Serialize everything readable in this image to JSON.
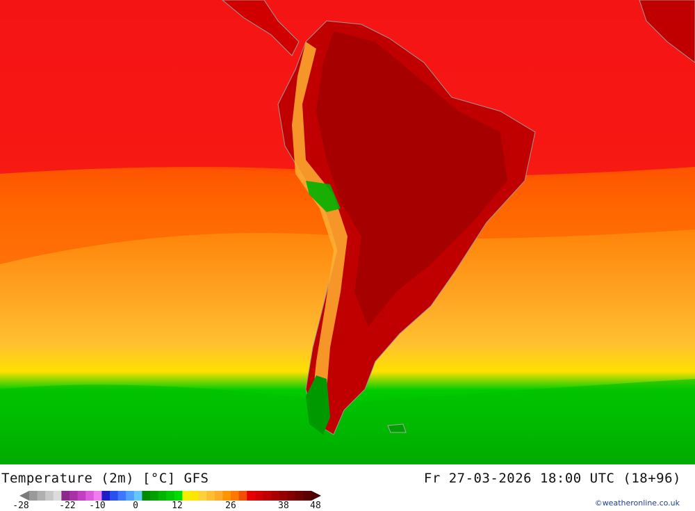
{
  "header": {
    "title": "Temperature (2m) [°C] GFS",
    "valid_time": "Fr 27-03-2026 18:00 UTC (18+96)"
  },
  "legend": {
    "ticks": [
      "-28",
      "-22",
      "-10",
      "0",
      "12",
      "26",
      "38",
      "48"
    ],
    "colors": [
      "#9a9a9a",
      "#b0b0b0",
      "#c8c8c8",
      "#dcdcdc",
      "#8b2a8b",
      "#a632a6",
      "#c23ec2",
      "#dc5adc",
      "#f07cf0",
      "#1e1ec8",
      "#2850f0",
      "#3c78ff",
      "#50a0ff",
      "#64c8ff",
      "#008c00",
      "#00a000",
      "#00b400",
      "#00c800",
      "#00dc00",
      "#f0f000",
      "#ffe600",
      "#ffd23c",
      "#ffbe32",
      "#ffaa28",
      "#ff9600",
      "#ff7800",
      "#f05000",
      "#e60000",
      "#d20000",
      "#be0000",
      "#aa0000",
      "#960000",
      "#820000",
      "#6e0000",
      "#5a0000"
    ],
    "arrow_left": "#7a7a7a",
    "arrow_right": "#4a0000"
  },
  "credit": "©weatheronline.co.uk"
}
